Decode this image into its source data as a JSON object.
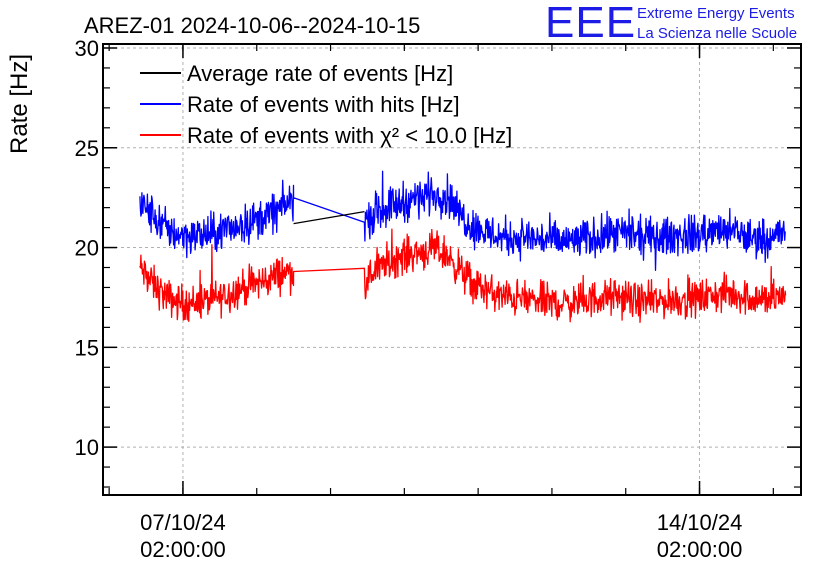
{
  "chart_data": {
    "type": "line",
    "title": "AREZ-01 2024-10-06--2024-10-15",
    "ylabel": "Rate [Hz]",
    "xlabel": "",
    "ylim": [
      7.6,
      30.2
    ],
    "xlim": [
      "2024-10-06 00:00",
      "2024-10-15 11:00"
    ],
    "yticks": [
      10,
      15,
      20,
      25,
      30
    ],
    "xticks": [
      {
        "x": "2024-10-07 02:00",
        "label_date": "07/10/24",
        "label_time": "02:00:00"
      },
      {
        "x": "2024-10-14 02:00",
        "label_date": "14/10/24",
        "label_time": "02:00:00"
      }
    ],
    "grid": true,
    "legend": "top-left",
    "series": [
      {
        "name": "Average rate of events [Hz]",
        "color": "#000000",
        "x": [
          "2024-10-08 14:00",
          "2024-10-09 13:00"
        ],
        "y": [
          21.2,
          21.8
        ]
      },
      {
        "name": "Rate of events with hits [Hz]",
        "color": "#0000ff",
        "noise": 0.6,
        "x": [
          "2024-10-06 12:00",
          "2024-10-06 15:00",
          "2024-10-06 18:00",
          "2024-10-06 21:00",
          "2024-10-07 00:00",
          "2024-10-07 04:00",
          "2024-10-07 08:00",
          "2024-10-07 12:00",
          "2024-10-07 16:00",
          "2024-10-07 20:00",
          "2024-10-08 00:00",
          "2024-10-08 04:00",
          "2024-10-08 08:00",
          "2024-10-08 12:00",
          "2024-10-08 14:00",
          "2024-10-09 13:00",
          "2024-10-09 16:00",
          "2024-10-09 20:00",
          "2024-10-10 00:00",
          "2024-10-10 04:00",
          "2024-10-10 08:00",
          "2024-10-10 12:00",
          "2024-10-10 16:00",
          "2024-10-10 20:00",
          "2024-10-11 00:00",
          "2024-10-11 04:00",
          "2024-10-11 08:00",
          "2024-10-11 12:00",
          "2024-10-11 18:00",
          "2024-10-12 00:00",
          "2024-10-12 06:00",
          "2024-10-12 12:00",
          "2024-10-12 18:00",
          "2024-10-13 00:00",
          "2024-10-13 06:00",
          "2024-10-13 12:00",
          "2024-10-13 18:00",
          "2024-10-14 00:00",
          "2024-10-14 06:00",
          "2024-10-14 12:00",
          "2024-10-14 18:00",
          "2024-10-15 00:00",
          "2024-10-15 06:00"
        ],
        "y": [
          22.2,
          21.8,
          21.3,
          20.9,
          20.7,
          20.6,
          20.6,
          20.7,
          20.9,
          21.1,
          21.3,
          21.5,
          21.8,
          22.2,
          22.5,
          21.2,
          21.7,
          22.0,
          22.2,
          22.4,
          22.6,
          22.7,
          22.6,
          21.7,
          21.1,
          20.8,
          20.6,
          20.5,
          20.5,
          20.4,
          20.3,
          20.4,
          20.6,
          20.7,
          20.5,
          20.5,
          20.6,
          20.6,
          20.8,
          20.8,
          20.5,
          20.5,
          20.8
        ]
      },
      {
        "name": "Rate of events with χ² < 10.0 [Hz]",
        "color": "#ff0000",
        "noise": 0.55,
        "x": [
          "2024-10-06 12:00",
          "2024-10-06 15:00",
          "2024-10-06 18:00",
          "2024-10-06 21:00",
          "2024-10-07 00:00",
          "2024-10-07 04:00",
          "2024-10-07 08:00",
          "2024-10-07 12:00",
          "2024-10-07 16:00",
          "2024-10-07 20:00",
          "2024-10-08 00:00",
          "2024-10-08 04:00",
          "2024-10-08 08:00",
          "2024-10-08 12:00",
          "2024-10-08 14:00",
          "2024-10-09 13:00",
          "2024-10-09 16:00",
          "2024-10-09 20:00",
          "2024-10-10 00:00",
          "2024-10-10 04:00",
          "2024-10-10 08:00",
          "2024-10-10 12:00",
          "2024-10-10 16:00",
          "2024-10-10 20:00",
          "2024-10-11 00:00",
          "2024-10-11 04:00",
          "2024-10-11 08:00",
          "2024-10-11 12:00",
          "2024-10-11 18:00",
          "2024-10-12 00:00",
          "2024-10-12 06:00",
          "2024-10-12 12:00",
          "2024-10-12 18:00",
          "2024-10-13 00:00",
          "2024-10-13 06:00",
          "2024-10-13 12:00",
          "2024-10-13 18:00",
          "2024-10-14 00:00",
          "2024-10-14 06:00",
          "2024-10-14 12:00",
          "2024-10-14 18:00",
          "2024-10-15 00:00",
          "2024-10-15 06:00"
        ],
        "y": [
          19.0,
          18.4,
          17.9,
          17.5,
          17.3,
          17.2,
          17.3,
          17.4,
          17.6,
          17.9,
          18.1,
          18.3,
          18.6,
          18.8,
          18.8,
          18.1,
          18.8,
          19.2,
          19.5,
          19.7,
          19.8,
          19.9,
          19.6,
          18.9,
          18.2,
          17.9,
          17.6,
          17.5,
          17.4,
          17.3,
          17.2,
          17.3,
          17.5,
          17.5,
          17.3,
          17.3,
          17.4,
          17.4,
          17.6,
          17.7,
          17.5,
          17.4,
          17.6
        ]
      }
    ]
  },
  "logo": {
    "mark": "EEE",
    "line1": "Extreme Energy Events",
    "line2": "La Scienza nelle Scuole",
    "color": "#1c1ce6"
  }
}
